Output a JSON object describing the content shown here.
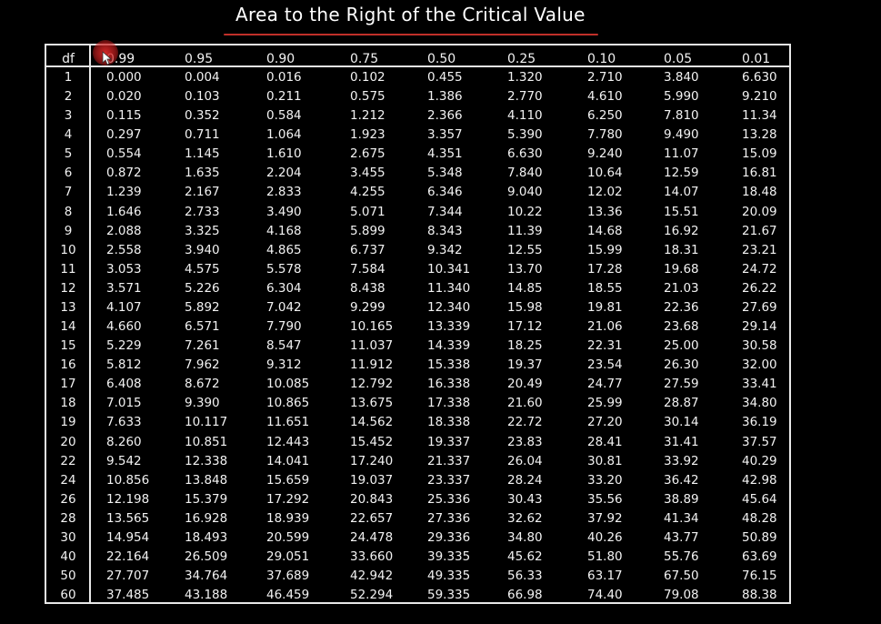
{
  "title": "Area to the Right of the Critical Value",
  "table": {
    "df_header": "df",
    "headers": [
      "0.99",
      "0.95",
      "0.90",
      "0.75",
      "0.50",
      "0.25",
      "0.10",
      "0.05",
      "0.01"
    ],
    "rows": [
      {
        "df": "1",
        "values": [
          "0.000",
          "0.004",
          "0.016",
          "0.102",
          "0.455",
          "1.320",
          "2.710",
          "3.840",
          "6.630"
        ]
      },
      {
        "df": "2",
        "values": [
          "0.020",
          "0.103",
          "0.211",
          "0.575",
          "1.386",
          "2.770",
          "4.610",
          "5.990",
          "9.210"
        ]
      },
      {
        "df": "3",
        "values": [
          "0.115",
          "0.352",
          "0.584",
          "1.212",
          "2.366",
          "4.110",
          "6.250",
          "7.810",
          "11.34"
        ]
      },
      {
        "df": "4",
        "values": [
          "0.297",
          "0.711",
          "1.064",
          "1.923",
          "3.357",
          "5.390",
          "7.780",
          "9.490",
          "13.28"
        ]
      },
      {
        "df": "5",
        "values": [
          "0.554",
          "1.145",
          "1.610",
          "2.675",
          "4.351",
          "6.630",
          "9.240",
          "11.07",
          "15.09"
        ]
      },
      {
        "df": "6",
        "values": [
          "0.872",
          "1.635",
          "2.204",
          "3.455",
          "5.348",
          "7.840",
          "10.64",
          "12.59",
          "16.81"
        ]
      },
      {
        "df": "7",
        "values": [
          "1.239",
          "2.167",
          "2.833",
          "4.255",
          "6.346",
          "9.040",
          "12.02",
          "14.07",
          "18.48"
        ]
      },
      {
        "df": "8",
        "values": [
          "1.646",
          "2.733",
          "3.490",
          "5.071",
          "7.344",
          "10.22",
          "13.36",
          "15.51",
          "20.09"
        ]
      },
      {
        "df": "9",
        "values": [
          "2.088",
          "3.325",
          "4.168",
          "5.899",
          "8.343",
          "11.39",
          "14.68",
          "16.92",
          "21.67"
        ]
      },
      {
        "df": "10",
        "values": [
          "2.558",
          "3.940",
          "4.865",
          "6.737",
          "9.342",
          "12.55",
          "15.99",
          "18.31",
          "23.21"
        ]
      },
      {
        "df": "11",
        "values": [
          "3.053",
          "4.575",
          "5.578",
          "7.584",
          "10.341",
          "13.70",
          "17.28",
          "19.68",
          "24.72"
        ]
      },
      {
        "df": "12",
        "values": [
          "3.571",
          "5.226",
          "6.304",
          "8.438",
          "11.340",
          "14.85",
          "18.55",
          "21.03",
          "26.22"
        ]
      },
      {
        "df": "13",
        "values": [
          "4.107",
          "5.892",
          "7.042",
          "9.299",
          "12.340",
          "15.98",
          "19.81",
          "22.36",
          "27.69"
        ]
      },
      {
        "df": "14",
        "values": [
          "4.660",
          "6.571",
          "7.790",
          "10.165",
          "13.339",
          "17.12",
          "21.06",
          "23.68",
          "29.14"
        ]
      },
      {
        "df": "15",
        "values": [
          "5.229",
          "7.261",
          "8.547",
          "11.037",
          "14.339",
          "18.25",
          "22.31",
          "25.00",
          "30.58"
        ]
      },
      {
        "df": "16",
        "values": [
          "5.812",
          "7.962",
          "9.312",
          "11.912",
          "15.338",
          "19.37",
          "23.54",
          "26.30",
          "32.00"
        ]
      },
      {
        "df": "17",
        "values": [
          "6.408",
          "8.672",
          "10.085",
          "12.792",
          "16.338",
          "20.49",
          "24.77",
          "27.59",
          "33.41"
        ]
      },
      {
        "df": "18",
        "values": [
          "7.015",
          "9.390",
          "10.865",
          "13.675",
          "17.338",
          "21.60",
          "25.99",
          "28.87",
          "34.80"
        ]
      },
      {
        "df": "19",
        "values": [
          "7.633",
          "10.117",
          "11.651",
          "14.562",
          "18.338",
          "22.72",
          "27.20",
          "30.14",
          "36.19"
        ]
      },
      {
        "df": "20",
        "values": [
          "8.260",
          "10.851",
          "12.443",
          "15.452",
          "19.337",
          "23.83",
          "28.41",
          "31.41",
          "37.57"
        ]
      },
      {
        "df": "22",
        "values": [
          "9.542",
          "12.338",
          "14.041",
          "17.240",
          "21.337",
          "26.04",
          "30.81",
          "33.92",
          "40.29"
        ]
      },
      {
        "df": "24",
        "values": [
          "10.856",
          "13.848",
          "15.659",
          "19.037",
          "23.337",
          "28.24",
          "33.20",
          "36.42",
          "42.98"
        ]
      },
      {
        "df": "26",
        "values": [
          "12.198",
          "15.379",
          "17.292",
          "20.843",
          "25.336",
          "30.43",
          "35.56",
          "38.89",
          "45.64"
        ]
      },
      {
        "df": "28",
        "values": [
          "13.565",
          "16.928",
          "18.939",
          "22.657",
          "27.336",
          "32.62",
          "37.92",
          "41.34",
          "48.28"
        ]
      },
      {
        "df": "30",
        "values": [
          "14.954",
          "18.493",
          "20.599",
          "24.478",
          "29.336",
          "34.80",
          "40.26",
          "43.77",
          "50.89"
        ]
      },
      {
        "df": "40",
        "values": [
          "22.164",
          "26.509",
          "29.051",
          "33.660",
          "39.335",
          "45.62",
          "51.80",
          "55.76",
          "63.69"
        ]
      },
      {
        "df": "50",
        "values": [
          "27.707",
          "34.764",
          "37.689",
          "42.942",
          "49.335",
          "56.33",
          "63.17",
          "67.50",
          "76.15"
        ]
      },
      {
        "df": "60",
        "values": [
          "37.485",
          "43.188",
          "46.459",
          "52.294",
          "59.335",
          "66.98",
          "74.40",
          "79.08",
          "88.38"
        ]
      }
    ]
  },
  "colors": {
    "background": "#000000",
    "text": "#f2f2f2",
    "grid": "#e8e8e8",
    "title_underline": "#c0302a",
    "cursor_highlight": "#dc2828"
  },
  "icons": {
    "cursor": "mouse-pointer-icon"
  }
}
